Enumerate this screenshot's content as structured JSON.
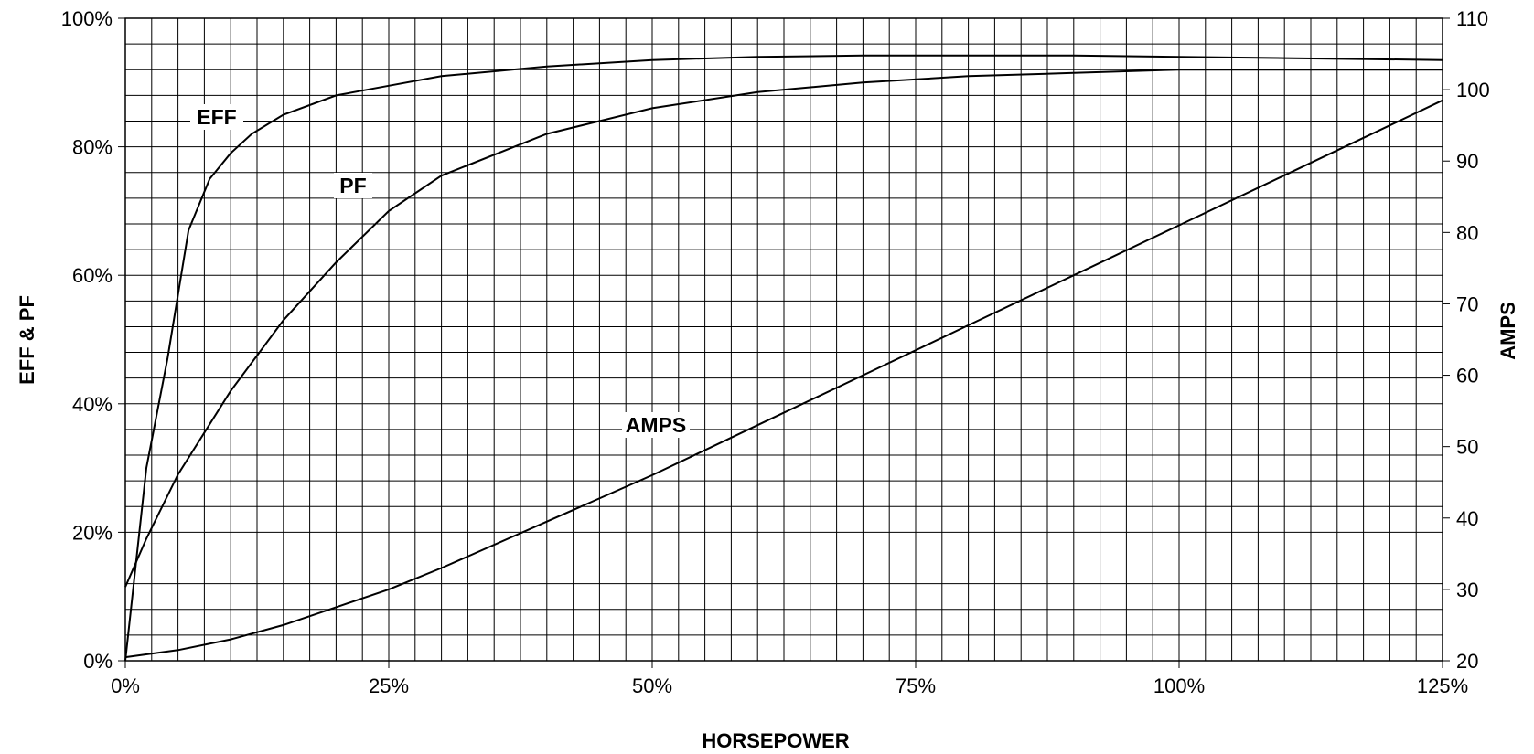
{
  "chart_data": {
    "type": "line",
    "xlabel": "HORSEPOWER",
    "ylabel": "EFF & PF",
    "y2label": "AMPS",
    "xlim": [
      0,
      125
    ],
    "ylim": [
      0,
      100
    ],
    "y2lim": [
      20,
      110
    ],
    "x_ticks": [
      0,
      25,
      50,
      75,
      100,
      125
    ],
    "x_tick_labels": [
      "0%",
      "25%",
      "50%",
      "75%",
      "100%",
      "125%"
    ],
    "y_ticks": [
      0,
      20,
      40,
      60,
      80,
      100
    ],
    "y_tick_labels": [
      "0%",
      "20%",
      "40%",
      "60%",
      "80%",
      "100%"
    ],
    "y2_ticks": [
      20,
      30,
      40,
      50,
      60,
      70,
      80,
      90,
      100,
      110
    ],
    "y2_tick_labels": [
      "20",
      "30",
      "40",
      "50",
      "60",
      "70",
      "80",
      "90",
      "100",
      "110"
    ],
    "grid": true,
    "series": [
      {
        "name": "EFF",
        "axis": "left",
        "x": [
          0,
          2,
          4,
          5,
          6,
          8,
          10,
          12,
          15,
          20,
          25,
          30,
          40,
          50,
          60,
          70,
          80,
          90,
          100,
          110,
          125
        ],
        "y": [
          0,
          30,
          47,
          57,
          67,
          75,
          79,
          82,
          85,
          88,
          89.5,
          91,
          92.5,
          93.5,
          94,
          94.2,
          94.2,
          94.2,
          94,
          93.8,
          93.5
        ]
      },
      {
        "name": "PF",
        "axis": "left",
        "x": [
          0,
          2,
          5,
          10,
          15,
          20,
          25,
          30,
          40,
          50,
          60,
          70,
          80,
          90,
          100,
          110,
          125
        ],
        "y": [
          11.5,
          19,
          29,
          42,
          53,
          62,
          70,
          75.5,
          82,
          86,
          88.5,
          90,
          91,
          91.5,
          92,
          92,
          92
        ]
      },
      {
        "name": "AMPS",
        "axis": "right",
        "x": [
          0,
          5,
          10,
          15,
          20,
          25,
          30,
          40,
          50,
          60,
          70,
          80,
          90,
          100,
          110,
          120,
          125
        ],
        "y": [
          20.5,
          21.5,
          23,
          25,
          27.5,
          30,
          33,
          39.5,
          46,
          53,
          60,
          67,
          74,
          81,
          88,
          95,
          98.5
        ]
      }
    ],
    "annotations": [
      "EFF",
      "PF",
      "AMPS"
    ]
  }
}
